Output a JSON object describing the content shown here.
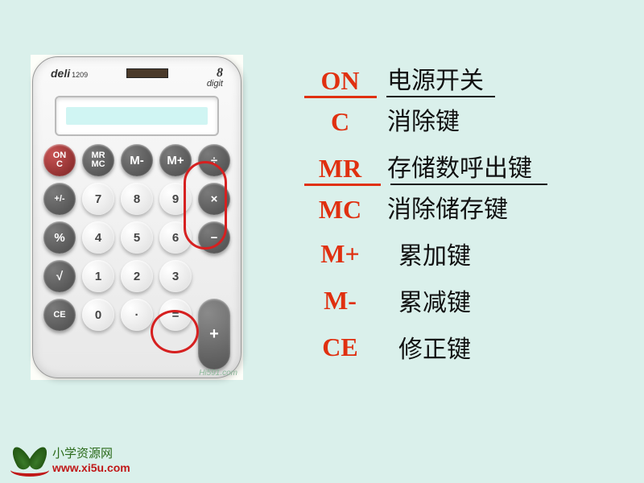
{
  "colors": {
    "page_bg": "#daf0eb",
    "red": "#e03010",
    "black": "#111111",
    "highlight": "#d62020"
  },
  "calculator": {
    "brand": "deli",
    "model": "1209",
    "digits_label": "digit",
    "digits_num": "8",
    "keys": [
      {
        "label": "ON\nC",
        "style": "red tiny",
        "name": "key-on-c"
      },
      {
        "label": "MR\nMC",
        "style": "dark tiny",
        "name": "key-mr-mc"
      },
      {
        "label": "M-",
        "style": "dark",
        "name": "key-m-minus"
      },
      {
        "label": "M+",
        "style": "dark",
        "name": "key-m-plus"
      },
      {
        "label": "÷",
        "style": "dark",
        "name": "key-divide"
      },
      {
        "label": "+/-",
        "style": "dark tiny",
        "name": "key-sign"
      },
      {
        "label": "7",
        "style": "light",
        "name": "key-7"
      },
      {
        "label": "8",
        "style": "light",
        "name": "key-8"
      },
      {
        "label": "9",
        "style": "light",
        "name": "key-9"
      },
      {
        "label": "×",
        "style": "dark",
        "name": "key-multiply"
      },
      {
        "label": "%",
        "style": "dark",
        "name": "key-percent"
      },
      {
        "label": "4",
        "style": "light",
        "name": "key-4"
      },
      {
        "label": "5",
        "style": "light",
        "name": "key-5"
      },
      {
        "label": "6",
        "style": "light",
        "name": "key-6"
      },
      {
        "label": "−",
        "style": "dark",
        "name": "key-minus"
      },
      {
        "label": "√",
        "style": "dark",
        "name": "key-sqrt"
      },
      {
        "label": "1",
        "style": "light",
        "name": "key-1"
      },
      {
        "label": "2",
        "style": "light",
        "name": "key-2"
      },
      {
        "label": "3",
        "style": "light",
        "name": "key-3"
      },
      {
        "label": "CE",
        "style": "dark tiny",
        "name": "key-ce"
      },
      {
        "label": "0",
        "style": "light",
        "name": "key-0"
      },
      {
        "label": "·",
        "style": "light",
        "name": "key-dot"
      },
      {
        "label": "=",
        "style": "light",
        "name": "key-equals"
      }
    ],
    "plus_key": "+",
    "watermark": "Hi591.com"
  },
  "legend": {
    "pairs": [
      {
        "top_sym": "ON",
        "top_desc": "电源开关",
        "sym_w": 90,
        "desc_w": 135,
        "bot_sym": "C",
        "bot_desc": "消除键"
      },
      {
        "top_sym": "MR",
        "top_desc": "存储数呼出键",
        "sym_w": 95,
        "desc_w": 195,
        "bot_sym": "MC",
        "bot_desc": "消除储存键"
      }
    ],
    "rows": [
      {
        "sym": "M+",
        "desc": "累加键"
      },
      {
        "sym": "M-",
        "desc": "累减键"
      },
      {
        "sym": "CE",
        "desc": "修正键"
      }
    ]
  },
  "footer": {
    "line1": "小学资源网",
    "line2": "www.xi5u.com"
  }
}
